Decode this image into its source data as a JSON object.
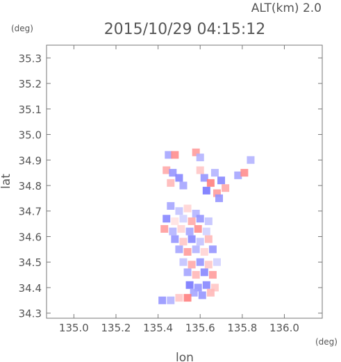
{
  "header": {
    "altitude_label": "ALT(km) 2.0",
    "timestamp": "2015/10/29 04:15:12"
  },
  "chart_data": {
    "type": "heatmap",
    "title": "2015/10/29 04:15:12",
    "xlabel": "lon",
    "ylabel": "lat",
    "x_unit": "(deg)",
    "y_unit": "(deg)",
    "xlim": [
      134.87,
      136.18
    ],
    "ylim": [
      34.28,
      35.35
    ],
    "x_ticks": [
      135.0,
      135.2,
      135.4,
      135.6,
      135.8,
      136.0
    ],
    "x_tick_labels": [
      "135.0",
      "135.2",
      "135.4",
      "135.6",
      "135.8",
      "136.0"
    ],
    "y_ticks": [
      34.3,
      34.4,
      34.5,
      34.6,
      34.7,
      34.8,
      34.9,
      35.0,
      35.1,
      35.2,
      35.3
    ],
    "y_tick_labels": [
      "34.3",
      "34.4",
      "34.5",
      "34.6",
      "34.7",
      "34.8",
      "34.9",
      "35.0",
      "35.1",
      "35.2",
      "35.3"
    ],
    "grid": false,
    "colors": {
      "positive": "#ff6666",
      "negative": "#5555ff",
      "neutral": "#f0e8ec",
      "axis": "#777777"
    },
    "cells": [
      {
        "lon": 135.45,
        "lat": 34.92,
        "v": -0.5
      },
      {
        "lon": 135.48,
        "lat": 34.92,
        "v": 0.7
      },
      {
        "lon": 135.58,
        "lat": 34.93,
        "v": 0.6
      },
      {
        "lon": 135.6,
        "lat": 34.91,
        "v": -0.4
      },
      {
        "lon": 135.44,
        "lat": 34.86,
        "v": 0.5
      },
      {
        "lon": 135.47,
        "lat": 34.85,
        "v": -0.6
      },
      {
        "lon": 135.5,
        "lat": 34.83,
        "v": -0.7
      },
      {
        "lon": 135.46,
        "lat": 34.81,
        "v": 0.4
      },
      {
        "lon": 135.52,
        "lat": 34.8,
        "v": -0.5
      },
      {
        "lon": 135.6,
        "lat": 34.86,
        "v": 0.3
      },
      {
        "lon": 135.62,
        "lat": 34.83,
        "v": -0.6
      },
      {
        "lon": 135.65,
        "lat": 34.81,
        "v": 0.8
      },
      {
        "lon": 135.67,
        "lat": 34.85,
        "v": -0.4
      },
      {
        "lon": 135.7,
        "lat": 34.82,
        "v": -0.7
      },
      {
        "lon": 135.72,
        "lat": 34.79,
        "v": 0.5
      },
      {
        "lon": 135.63,
        "lat": 34.78,
        "v": -0.8
      },
      {
        "lon": 135.68,
        "lat": 34.77,
        "v": 0.6
      },
      {
        "lon": 135.78,
        "lat": 34.84,
        "v": -0.5
      },
      {
        "lon": 135.81,
        "lat": 34.85,
        "v": 0.7
      },
      {
        "lon": 135.84,
        "lat": 34.9,
        "v": -0.4
      },
      {
        "lon": 135.69,
        "lat": 34.75,
        "v": -0.6
      },
      {
        "lon": 135.46,
        "lat": 34.72,
        "v": -0.5
      },
      {
        "lon": 135.5,
        "lat": 34.7,
        "v": -0.3
      },
      {
        "lon": 135.54,
        "lat": 34.71,
        "v": 0.2
      },
      {
        "lon": 135.58,
        "lat": 34.69,
        "v": -0.4
      },
      {
        "lon": 135.44,
        "lat": 34.67,
        "v": -0.7
      },
      {
        "lon": 135.48,
        "lat": 34.66,
        "v": 0.1
      },
      {
        "lon": 135.52,
        "lat": 34.67,
        "v": -0.2
      },
      {
        "lon": 135.56,
        "lat": 34.66,
        "v": 0.5
      },
      {
        "lon": 135.6,
        "lat": 34.67,
        "v": -0.6
      },
      {
        "lon": 135.64,
        "lat": 34.66,
        "v": -0.3
      },
      {
        "lon": 135.43,
        "lat": 34.63,
        "v": 0.6
      },
      {
        "lon": 135.47,
        "lat": 34.62,
        "v": -0.4
      },
      {
        "lon": 135.51,
        "lat": 34.63,
        "v": 0.2
      },
      {
        "lon": 135.55,
        "lat": 34.62,
        "v": -0.5
      },
      {
        "lon": 135.59,
        "lat": 34.63,
        "v": 0.7
      },
      {
        "lon": 135.63,
        "lat": 34.62,
        "v": -0.2
      },
      {
        "lon": 135.48,
        "lat": 34.59,
        "v": -0.6
      },
      {
        "lon": 135.52,
        "lat": 34.58,
        "v": 0.3
      },
      {
        "lon": 135.56,
        "lat": 34.59,
        "v": -0.7
      },
      {
        "lon": 135.6,
        "lat": 34.58,
        "v": -0.3
      },
      {
        "lon": 135.64,
        "lat": 34.59,
        "v": 0.4
      },
      {
        "lon": 135.5,
        "lat": 34.55,
        "v": -0.5
      },
      {
        "lon": 135.54,
        "lat": 34.54,
        "v": 0.6
      },
      {
        "lon": 135.58,
        "lat": 34.55,
        "v": -0.4
      },
      {
        "lon": 135.62,
        "lat": 34.54,
        "v": 0.2
      },
      {
        "lon": 135.66,
        "lat": 34.55,
        "v": -0.6
      },
      {
        "lon": 135.52,
        "lat": 34.5,
        "v": -0.3
      },
      {
        "lon": 135.56,
        "lat": 34.49,
        "v": 0.5
      },
      {
        "lon": 135.6,
        "lat": 34.5,
        "v": -0.6
      },
      {
        "lon": 135.64,
        "lat": 34.49,
        "v": 0.3
      },
      {
        "lon": 135.68,
        "lat": 34.5,
        "v": -0.2
      },
      {
        "lon": 135.54,
        "lat": 34.46,
        "v": -0.5
      },
      {
        "lon": 135.58,
        "lat": 34.45,
        "v": 0.4
      },
      {
        "lon": 135.62,
        "lat": 34.46,
        "v": -0.7
      },
      {
        "lon": 135.66,
        "lat": 34.45,
        "v": 0.6
      },
      {
        "lon": 135.55,
        "lat": 34.41,
        "v": -0.8
      },
      {
        "lon": 135.59,
        "lat": 34.4,
        "v": -0.6
      },
      {
        "lon": 135.63,
        "lat": 34.41,
        "v": -0.7
      },
      {
        "lon": 135.67,
        "lat": 34.4,
        "v": 0.3
      },
      {
        "lon": 135.57,
        "lat": 34.38,
        "v": -0.5
      },
      {
        "lon": 135.61,
        "lat": 34.37,
        "v": -0.6
      },
      {
        "lon": 135.65,
        "lat": 34.38,
        "v": 0.4
      },
      {
        "lon": 135.42,
        "lat": 34.35,
        "v": -0.6
      },
      {
        "lon": 135.46,
        "lat": 34.35,
        "v": -0.4
      },
      {
        "lon": 135.5,
        "lat": 34.36,
        "v": 0.3
      },
      {
        "lon": 135.54,
        "lat": 34.36,
        "v": 0.8
      }
    ]
  }
}
